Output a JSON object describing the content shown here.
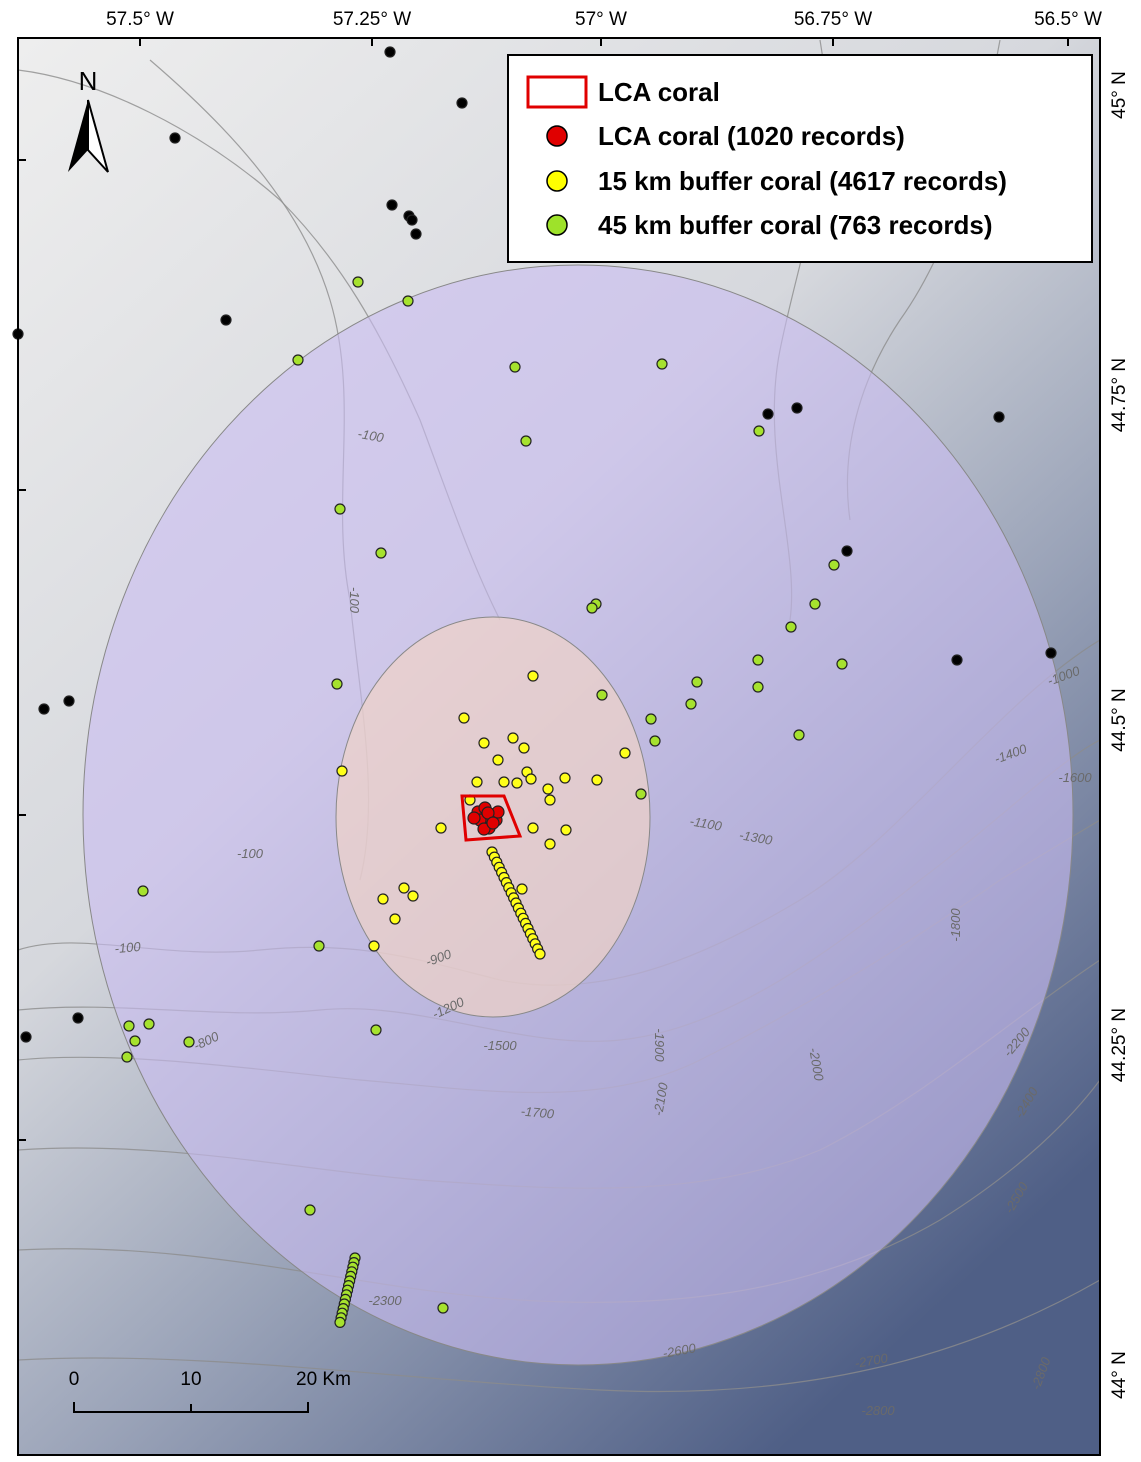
{
  "map": {
    "north_label": "N",
    "longitude_labels": [
      "57.5° W",
      "57.25° W",
      "57° W",
      "56.75° W",
      "56.5° W"
    ],
    "latitude_labels": [
      "45° N",
      "44.75° N",
      "44.5° N",
      "44.25° N",
      "44° N"
    ],
    "legend": [
      "LCA coral",
      "LCA coral (1020 records)",
      "15 km buffer coral (4617 records)",
      "45 km buffer coral (763 records)"
    ],
    "contour_labels": [
      "-100",
      "-100",
      "-100",
      "-100",
      "-800",
      "-900",
      "-1200",
      "-1500",
      "-1700",
      "-1900",
      "-2100",
      "-2000",
      "-1100",
      "-1300",
      "-1000",
      "-1400",
      "-1600",
      "-1800",
      "-2200",
      "-2400",
      "-2500",
      "-2300",
      "-2600",
      "-2700",
      "-2800",
      "-2800"
    ],
    "scale_bar": [
      "0",
      "10",
      "20 Km"
    ]
  }
}
